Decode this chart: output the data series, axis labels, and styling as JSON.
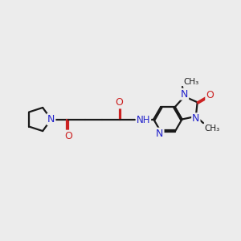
{
  "bg_color": "#ececec",
  "bond_color": "#1a1a1a",
  "N_color": "#2222cc",
  "O_color": "#cc2222",
  "NH_color": "#2222cc",
  "lw": 1.6,
  "dbo": 0.055,
  "fs": 9.0,
  "xlim": [
    0,
    10
  ],
  "ylim": [
    2,
    8
  ]
}
